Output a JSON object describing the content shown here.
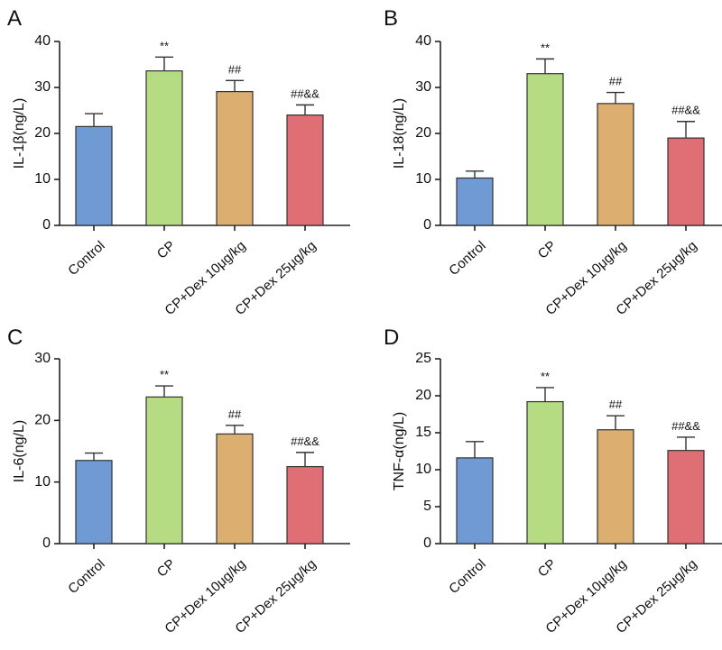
{
  "colors": {
    "Control": "#6f9ad3",
    "CP": "#b5dc82",
    "CP+Dex 10μg/kg": "#dcae6f",
    "CP+Dex 25μg/kg": "#df6f74"
  },
  "chart_data": [
    {
      "type": "bar",
      "panel": "A",
      "ylabel": "IL-1β(ng/L)",
      "categories": [
        "Control",
        "CP",
        "CP+Dex 10μg/kg",
        "CP+Dex 25μg/kg"
      ],
      "values": [
        21.5,
        33.6,
        29.1,
        24.0
      ],
      "errors": [
        2.8,
        3.0,
        2.4,
        2.2
      ],
      "annotations": [
        "",
        "**",
        "##",
        "##&&"
      ],
      "ylim": [
        0,
        40
      ],
      "yticks": [
        0,
        10,
        20,
        30,
        40
      ]
    },
    {
      "type": "bar",
      "panel": "B",
      "ylabel": "IL-18(ng/L)",
      "categories": [
        "Control",
        "CP",
        "CP+Dex 10μg/kg",
        "CP+Dex 25μg/kg"
      ],
      "values": [
        10.3,
        33.0,
        26.5,
        19.0
      ],
      "errors": [
        1.5,
        3.2,
        2.4,
        3.6
      ],
      "annotations": [
        "",
        "**",
        "##",
        "##&&"
      ],
      "ylim": [
        0,
        40
      ],
      "yticks": [
        0,
        10,
        20,
        30,
        40
      ]
    },
    {
      "type": "bar",
      "panel": "C",
      "ylabel": "IL-6(ng/L)",
      "categories": [
        "Control",
        "CP",
        "CP+Dex 10μg/kg",
        "CP+Dex 25μg/kg"
      ],
      "values": [
        13.5,
        23.8,
        17.8,
        12.5
      ],
      "errors": [
        1.2,
        1.8,
        1.4,
        2.3
      ],
      "annotations": [
        "",
        "**",
        "##",
        "##&&"
      ],
      "ylim": [
        0,
        30
      ],
      "yticks": [
        0,
        10,
        20,
        30
      ]
    },
    {
      "type": "bar",
      "panel": "D",
      "ylabel": "TNF-α(ng/L)",
      "categories": [
        "Control",
        "CP",
        "CP+Dex 10μg/kg",
        "CP+Dex 25μg/kg"
      ],
      "values": [
        11.6,
        19.2,
        15.4,
        12.6
      ],
      "errors": [
        2.2,
        1.9,
        1.9,
        1.8
      ],
      "annotations": [
        "",
        "**",
        "##",
        "##&&"
      ],
      "ylim": [
        0,
        25
      ],
      "yticks": [
        0,
        5,
        10,
        15,
        20,
        25
      ]
    }
  ]
}
